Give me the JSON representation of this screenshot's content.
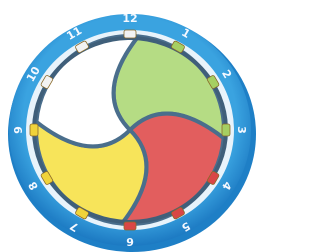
{
  "dial": {
    "numbers": [
      "12",
      "1",
      "2",
      "3",
      "4",
      "5",
      "6",
      "7",
      "8",
      "9",
      "10",
      "11"
    ]
  }
}
